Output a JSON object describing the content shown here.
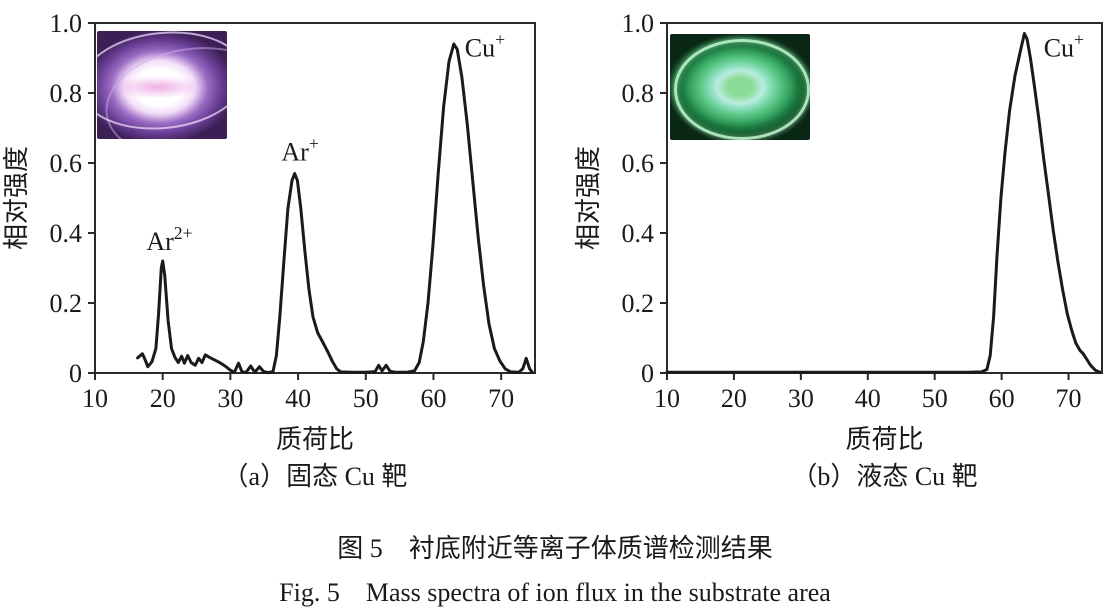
{
  "figure": {
    "caption_zh": "图 5　衬底附近等离子体质谱检测结果",
    "caption_en": "Fig. 5　Mass spectra of ion flux in the substrate area"
  },
  "chart_data": [
    {
      "type": "line",
      "title": "（a）固态 Cu 靶",
      "xlabel": "质荷比",
      "ylabel": "相对强度",
      "xlim": [
        10,
        75
      ],
      "ylim": [
        0,
        1
      ],
      "x_ticks": [
        10,
        20,
        30,
        40,
        50,
        60,
        70
      ],
      "y_tick_labels": [
        "0",
        "0.2",
        "0.4",
        "0.6",
        "0.8",
        "1.0"
      ],
      "grid": false,
      "line_color": "#1a1a1a",
      "axis_color": "#2a2a2a",
      "peaks": [
        {
          "label": "Ar",
          "sup": "2+",
          "x": 20,
          "y": 0.32,
          "label_x": 21.0,
          "label_y": 0.352
        },
        {
          "label": "Ar",
          "sup": "+",
          "x": 39.5,
          "y": 0.57,
          "label_x": 40.3,
          "label_y": 0.607
        },
        {
          "label": "Cu",
          "sup": "+",
          "x": 63,
          "y": 0.94,
          "label_x": 67.6,
          "label_y": 0.905
        }
      ],
      "points": [
        [
          16.3,
          0.043
        ],
        [
          17.0,
          0.055
        ],
        [
          17.4,
          0.038
        ],
        [
          17.8,
          0.018
        ],
        [
          18.4,
          0.032
        ],
        [
          19.0,
          0.07
        ],
        [
          19.4,
          0.17
        ],
        [
          19.8,
          0.3
        ],
        [
          20.0,
          0.32
        ],
        [
          20.3,
          0.28
        ],
        [
          20.8,
          0.15
        ],
        [
          21.3,
          0.07
        ],
        [
          21.8,
          0.045
        ],
        [
          22.3,
          0.03
        ],
        [
          22.8,
          0.048
        ],
        [
          23.2,
          0.028
        ],
        [
          23.7,
          0.05
        ],
        [
          24.2,
          0.03
        ],
        [
          24.8,
          0.022
        ],
        [
          25.3,
          0.042
        ],
        [
          25.8,
          0.03
        ],
        [
          26.3,
          0.052
        ],
        [
          26.9,
          0.045
        ],
        [
          27.6,
          0.038
        ],
        [
          28.4,
          0.03
        ],
        [
          29.2,
          0.02
        ],
        [
          30.0,
          0.008
        ],
        [
          30.6,
          0.002
        ],
        [
          31.2,
          0.028
        ],
        [
          31.7,
          0.004
        ],
        [
          32.3,
          0.001
        ],
        [
          33.0,
          0.02
        ],
        [
          33.6,
          0.002
        ],
        [
          34.3,
          0.018
        ],
        [
          34.9,
          0.004
        ],
        [
          35.6,
          0.001
        ],
        [
          36.3,
          0.004
        ],
        [
          36.8,
          0.05
        ],
        [
          37.3,
          0.16
        ],
        [
          37.9,
          0.32
        ],
        [
          38.5,
          0.47
        ],
        [
          39.1,
          0.55
        ],
        [
          39.5,
          0.57
        ],
        [
          39.9,
          0.55
        ],
        [
          40.4,
          0.47
        ],
        [
          41.0,
          0.35
        ],
        [
          41.6,
          0.24
        ],
        [
          42.2,
          0.16
        ],
        [
          42.9,
          0.115
        ],
        [
          43.6,
          0.09
        ],
        [
          44.4,
          0.06
        ],
        [
          45.1,
          0.032
        ],
        [
          45.7,
          0.012
        ],
        [
          46.3,
          0.003
        ],
        [
          48.0,
          0.002
        ],
        [
          50.0,
          0.002
        ],
        [
          51.4,
          0.004
        ],
        [
          51.9,
          0.022
        ],
        [
          52.4,
          0.006
        ],
        [
          53.0,
          0.022
        ],
        [
          53.6,
          0.005
        ],
        [
          54.5,
          0.002
        ],
        [
          56.0,
          0.002
        ],
        [
          57.2,
          0.006
        ],
        [
          57.9,
          0.03
        ],
        [
          58.5,
          0.09
        ],
        [
          59.2,
          0.2
        ],
        [
          59.9,
          0.36
        ],
        [
          60.7,
          0.57
        ],
        [
          61.5,
          0.76
        ],
        [
          62.3,
          0.89
        ],
        [
          63.0,
          0.94
        ],
        [
          63.5,
          0.925
        ],
        [
          64.2,
          0.845
        ],
        [
          65.0,
          0.71
        ],
        [
          65.8,
          0.55
        ],
        [
          66.6,
          0.39
        ],
        [
          67.4,
          0.25
        ],
        [
          68.2,
          0.14
        ],
        [
          69.0,
          0.07
        ],
        [
          69.8,
          0.035
        ],
        [
          70.6,
          0.012
        ],
        [
          71.4,
          0.003
        ],
        [
          72.6,
          0.002
        ],
        [
          73.2,
          0.012
        ],
        [
          73.7,
          0.042
        ],
        [
          74.2,
          0.012
        ],
        [
          74.6,
          0.002
        ]
      ],
      "inset": {
        "style": "purple",
        "subject": "plasma-discharge-photo",
        "colors": [
          "#3b1f55",
          "#9a6cc4",
          "#ffffff",
          "#eeb0e6"
        ]
      }
    },
    {
      "type": "line",
      "title": "（b）液态 Cu 靶",
      "xlabel": "质荷比",
      "ylabel": "相对强度",
      "xlim": [
        10,
        75
      ],
      "ylim": [
        0,
        1
      ],
      "x_ticks": [
        10,
        20,
        30,
        40,
        50,
        60,
        70
      ],
      "y_tick_labels": [
        "0",
        "0.2",
        "0.4",
        "0.6",
        "0.8",
        "1.0"
      ],
      "grid": false,
      "line_color": "#1a1a1a",
      "axis_color": "#2a2a2a",
      "peaks": [
        {
          "label": "Cu",
          "sup": "+",
          "x": 63.5,
          "y": 0.975,
          "label_x": 69.3,
          "label_y": 0.905
        }
      ],
      "points": [
        [
          10.0,
          0.002
        ],
        [
          20.0,
          0.002
        ],
        [
          30.0,
          0.002
        ],
        [
          40.0,
          0.002
        ],
        [
          50.0,
          0.002
        ],
        [
          55.0,
          0.002
        ],
        [
          57.0,
          0.003
        ],
        [
          57.8,
          0.01
        ],
        [
          58.3,
          0.05
        ],
        [
          58.8,
          0.16
        ],
        [
          59.3,
          0.33
        ],
        [
          59.9,
          0.5
        ],
        [
          60.5,
          0.63
        ],
        [
          61.2,
          0.75
        ],
        [
          62.0,
          0.85
        ],
        [
          62.8,
          0.92
        ],
        [
          63.4,
          0.97
        ],
        [
          63.8,
          0.955
        ],
        [
          64.3,
          0.9
        ],
        [
          64.9,
          0.82
        ],
        [
          65.6,
          0.72
        ],
        [
          66.3,
          0.61
        ],
        [
          67.0,
          0.51
        ],
        [
          67.7,
          0.41
        ],
        [
          68.4,
          0.32
        ],
        [
          69.1,
          0.24
        ],
        [
          69.8,
          0.17
        ],
        [
          70.5,
          0.12
        ],
        [
          71.1,
          0.085
        ],
        [
          71.7,
          0.065
        ],
        [
          72.2,
          0.055
        ],
        [
          72.7,
          0.04
        ],
        [
          73.3,
          0.022
        ],
        [
          74.0,
          0.008
        ],
        [
          74.7,
          0.002
        ]
      ],
      "inset": {
        "style": "green",
        "subject": "plasma-discharge-photo",
        "colors": [
          "#0a2614",
          "#1d7c42",
          "#b9ecdf",
          "#8cdb96"
        ]
      }
    }
  ]
}
